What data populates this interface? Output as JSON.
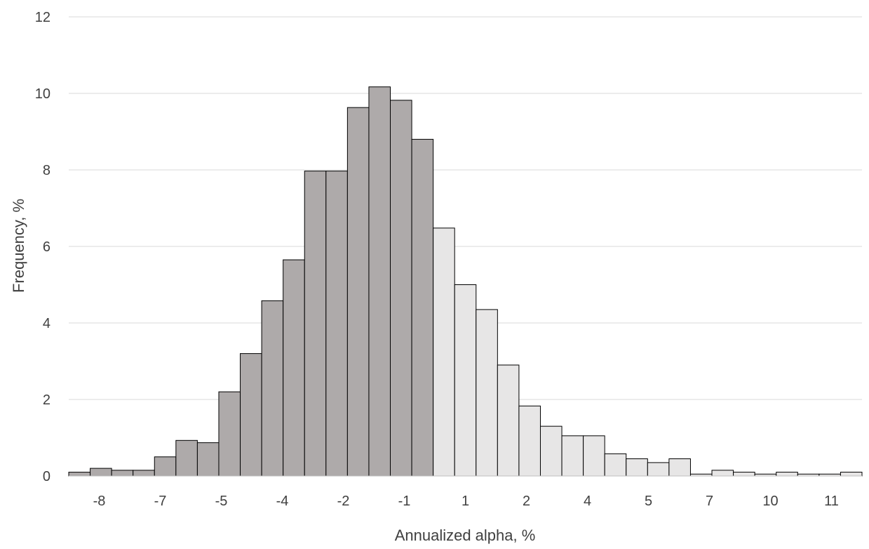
{
  "chart_data": {
    "type": "bar",
    "title": "",
    "xlabel": "Annualized alpha, %",
    "ylabel": "Frequency, %",
    "ylim": [
      0,
      12
    ],
    "yticks": [
      0,
      2,
      4,
      6,
      8,
      10,
      12
    ],
    "grid": true,
    "x_tick_labels": [
      "-8",
      "-7",
      "-5",
      "-4",
      "-2",
      "-1",
      "1",
      "2",
      "4",
      "5",
      "7",
      "10",
      "11"
    ],
    "colors": {
      "negative": "#aeaaaa",
      "positive": "#e7e6e6",
      "outline": "#000000",
      "grid": "#d9d9d9",
      "text": "#404040"
    },
    "values": [
      0.1,
      0.2,
      0.15,
      0.15,
      0.5,
      0.93,
      0.87,
      2.2,
      3.2,
      4.58,
      5.65,
      7.97,
      7.97,
      9.63,
      10.17,
      9.82,
      8.8,
      6.48,
      5.0,
      4.35,
      2.9,
      1.83,
      1.3,
      1.05,
      1.05,
      0.58,
      0.45,
      0.35,
      0.45,
      0.05,
      0.15,
      0.1,
      0.05,
      0.1,
      0.05,
      0.05,
      0.1
    ],
    "bar_group": [
      "negative",
      "negative",
      "negative",
      "negative",
      "negative",
      "negative",
      "negative",
      "negative",
      "negative",
      "negative",
      "negative",
      "negative",
      "negative",
      "negative",
      "negative",
      "negative",
      "negative",
      "positive",
      "positive",
      "positive",
      "positive",
      "positive",
      "positive",
      "positive",
      "positive",
      "positive",
      "positive",
      "positive",
      "positive",
      "positive",
      "positive",
      "positive",
      "positive",
      "positive",
      "positive",
      "positive",
      "positive"
    ]
  }
}
